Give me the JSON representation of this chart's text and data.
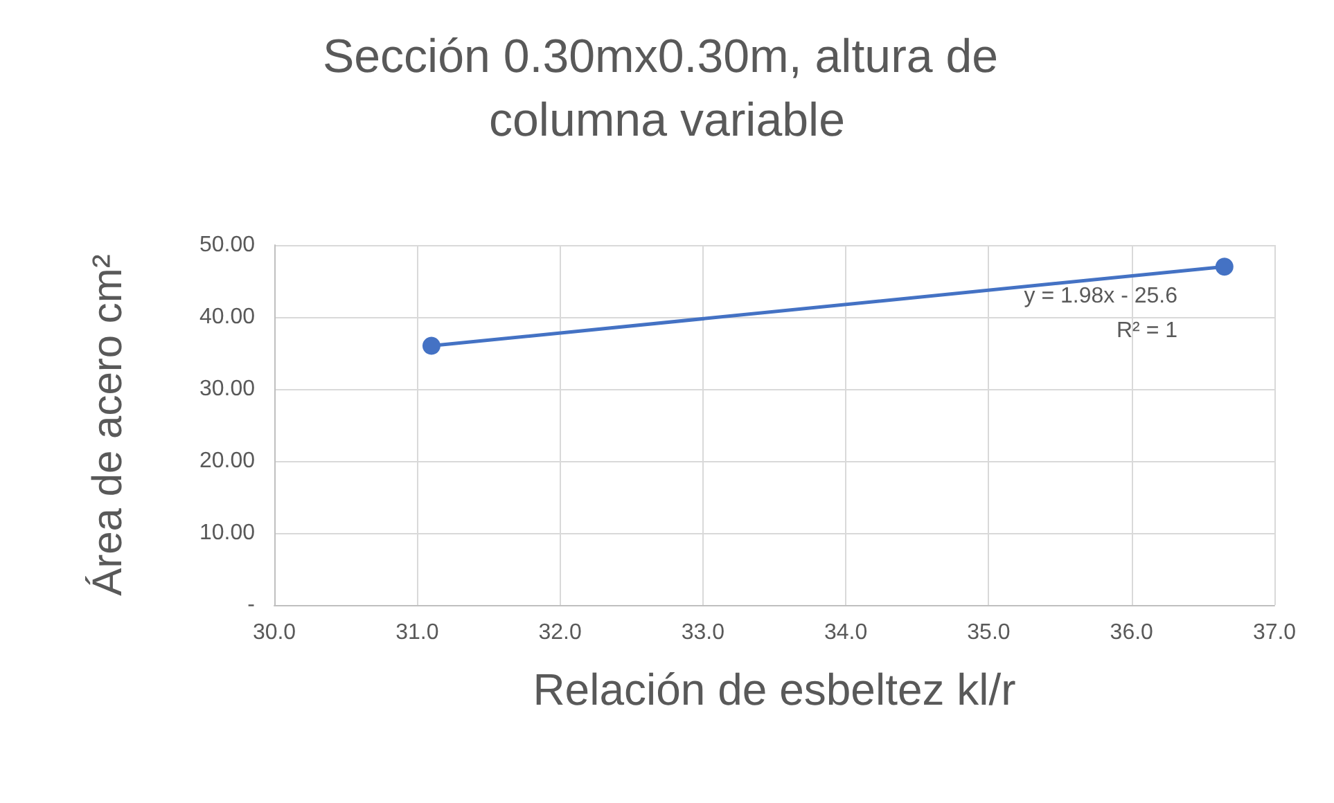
{
  "chart_data": {
    "type": "line",
    "title": "Sección 0.30mx0.30m, altura de columna variable",
    "xlabel": "Relación de esbeltez kl/r",
    "ylabel": "Área de acero cm²",
    "x": [
      31.1,
      36.65
    ],
    "series": [
      {
        "color": "#4472c4",
        "values": [
          36.0,
          47.0
        ]
      }
    ],
    "xlim": [
      30,
      37
    ],
    "xticks": [
      {
        "value": 30,
        "label": "30.0"
      },
      {
        "value": 31,
        "label": "31.0"
      },
      {
        "value": 32,
        "label": "32.0"
      },
      {
        "value": 33,
        "label": "33.0"
      },
      {
        "value": 34,
        "label": "34.0"
      },
      {
        "value": 35,
        "label": "35.0"
      },
      {
        "value": 36,
        "label": "36.0"
      },
      {
        "value": 37,
        "label": "37.0"
      }
    ],
    "ylim": [
      0,
      50
    ],
    "yticks": [
      {
        "value": 0,
        "label": "-"
      },
      {
        "value": 10,
        "label": "10.00"
      },
      {
        "value": 20,
        "label": "20.00"
      },
      {
        "value": 30,
        "label": "30.00"
      },
      {
        "value": 40,
        "label": "40.00"
      },
      {
        "value": 50,
        "label": "50.00"
      }
    ],
    "grid": true,
    "marker": "circle",
    "line_style": "solid",
    "annotations": [
      "y = 1.98x - 25.6",
      "R² = 1"
    ]
  }
}
